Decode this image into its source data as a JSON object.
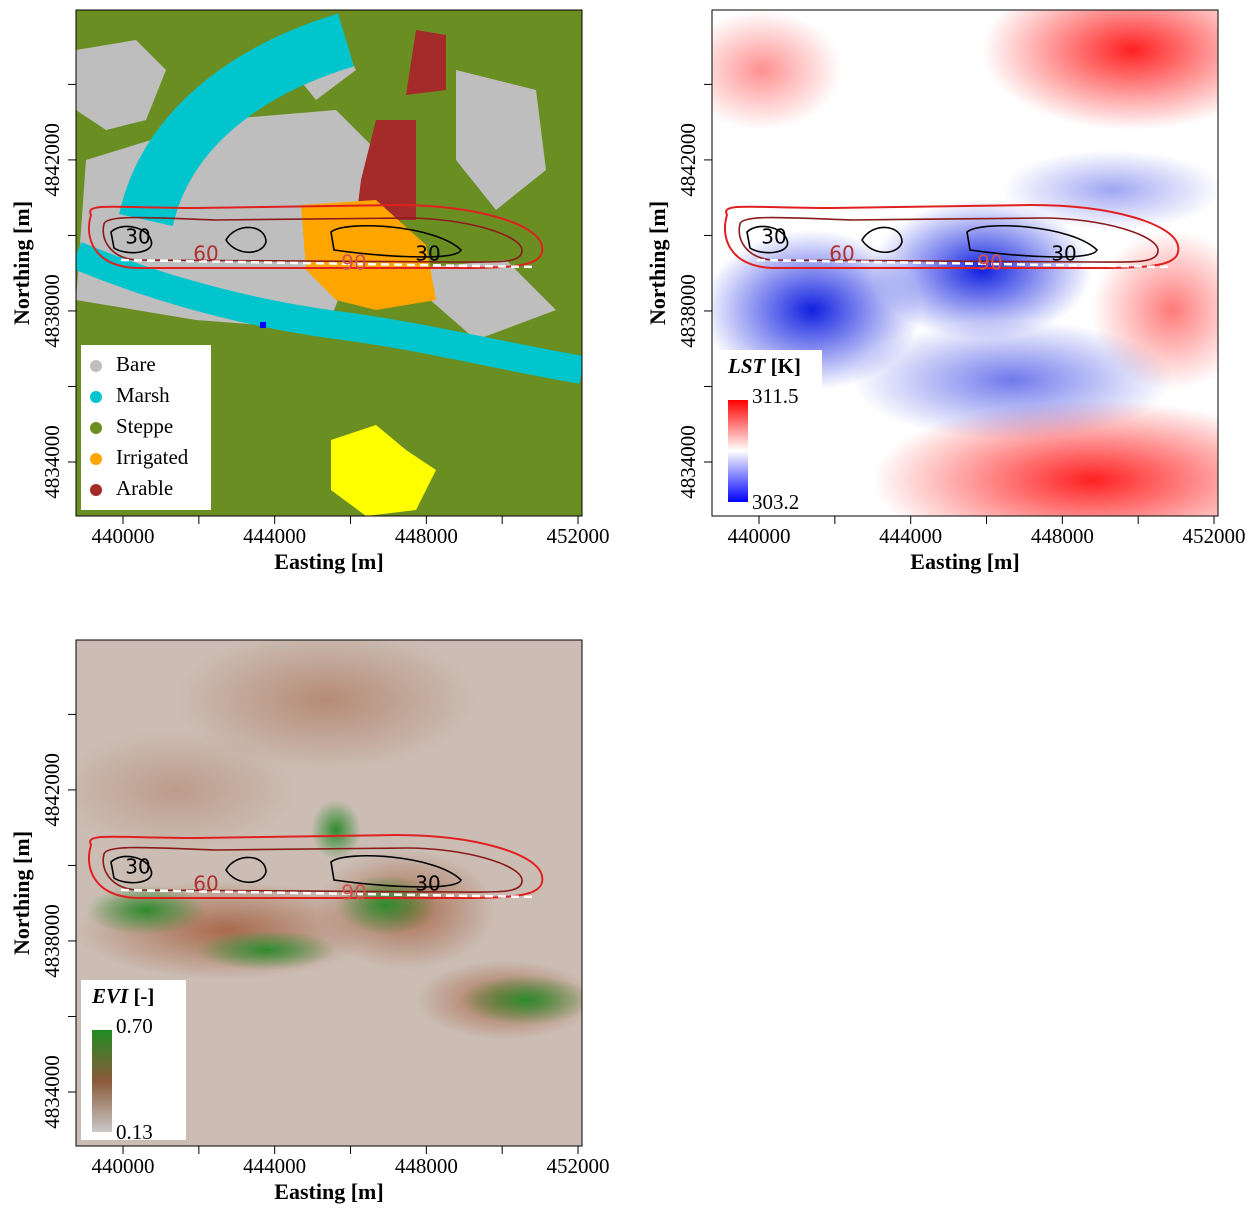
{
  "chart_data": [
    {
      "type": "raster",
      "xlabel": "Easting [m]",
      "ylabel": "Northing [m]",
      "xlim": [
        438760,
        452105
      ],
      "ylim": [
        4832570,
        4845970
      ],
      "xticks": [
        440000,
        444000,
        448000,
        452000
      ],
      "xminorticks": [
        442000,
        446000,
        450000
      ],
      "yticks": [
        4834000,
        4838000,
        4842000
      ],
      "yminorticks": [
        4836000,
        4840000,
        4844000
      ],
      "contour_labels": [
        30,
        60,
        90
      ],
      "legend": [
        {
          "name": "Bare",
          "color": "#bebebe"
        },
        {
          "name": "Marsh",
          "color": "#00c5cd"
        },
        {
          "name": "Steppe",
          "color": "#6b8e23"
        },
        {
          "name": "Irrigated",
          "color": "#ffa500"
        },
        {
          "name": "Arable",
          "color": "#a52a2a"
        }
      ]
    },
    {
      "type": "raster",
      "xlabel": "Easting [m]",
      "ylabel": "Northing [m]",
      "xlim": [
        438760,
        452105
      ],
      "ylim": [
        4832570,
        4845970
      ],
      "xticks": [
        440000,
        444000,
        448000,
        452000
      ],
      "xminorticks": [
        442000,
        446000,
        450000
      ],
      "yticks": [
        4834000,
        4838000,
        4842000
      ],
      "yminorticks": [
        4836000,
        4840000,
        4844000
      ],
      "contour_labels": [
        30,
        60,
        90
      ],
      "colorbar": {
        "title": "LST",
        "unit": "[K]",
        "min": 303.2,
        "max": 311.5,
        "colors": [
          "#0000ff",
          "#ffffff",
          "#ff0000"
        ]
      }
    },
    {
      "type": "raster",
      "xlabel": "Easting [m]",
      "ylabel": "Northing [m]",
      "xlim": [
        438760,
        452105
      ],
      "ylim": [
        4832570,
        4845970
      ],
      "xticks": [
        440000,
        444000,
        448000,
        452000
      ],
      "xminorticks": [
        442000,
        446000,
        450000
      ],
      "yticks": [
        4834000,
        4838000,
        4842000
      ],
      "yminorticks": [
        4836000,
        4840000,
        4844000
      ],
      "contour_labels": [
        30,
        60,
        90
      ],
      "colorbar": {
        "title": "EVI",
        "unit": "[-]",
        "min": 0.13,
        "max": {
          "value": 0.7,
          "label": "0.70"
        },
        "colors": [
          "#c9c9c9",
          "#8b5a3c",
          "#228b22"
        ]
      }
    }
  ]
}
